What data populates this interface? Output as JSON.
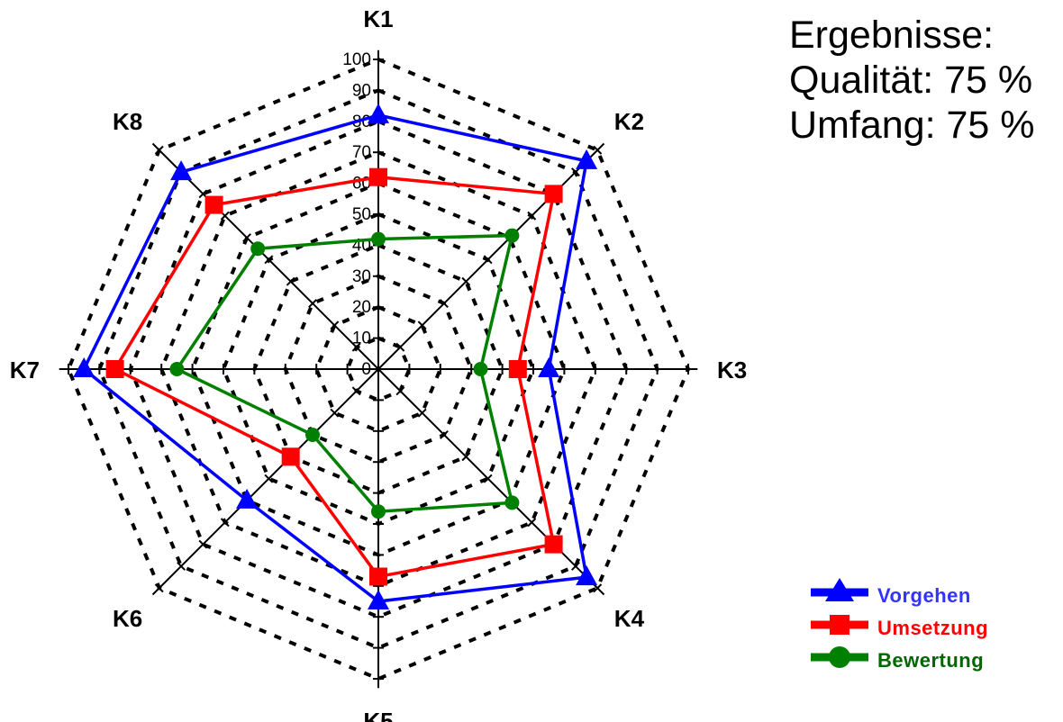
{
  "results": {
    "heading": "Ergebnisse:",
    "quality": "Qualität: 75 %",
    "scope": "Umfang: 75 %"
  },
  "chart_data": {
    "type": "radar",
    "categories": [
      "K1",
      "K2",
      "K3",
      "K4",
      "K5",
      "K6",
      "K7",
      "K8"
    ],
    "radial_range": [
      0,
      100
    ],
    "radial_ticks": [
      "0",
      "10",
      "20",
      "30",
      "40",
      "50",
      "60",
      "70",
      "80",
      "90",
      "100"
    ],
    "grid": true,
    "legend_position": "bottom-right",
    "series": [
      {
        "name": "Vorgehen",
        "color": "#0000ff",
        "marker": "triangle",
        "values": [
          82,
          95,
          55,
          95,
          75,
          60,
          95,
          90
        ]
      },
      {
        "name": "Umsetzung",
        "color": "#ff0000",
        "marker": "square",
        "values": [
          62,
          80,
          45,
          80,
          67,
          40,
          85,
          75
        ]
      },
      {
        "name": "Bewertung",
        "color": "#008000",
        "marker": "circle",
        "values": [
          42,
          61,
          33,
          61,
          46,
          30,
          65,
          55
        ]
      }
    ]
  }
}
